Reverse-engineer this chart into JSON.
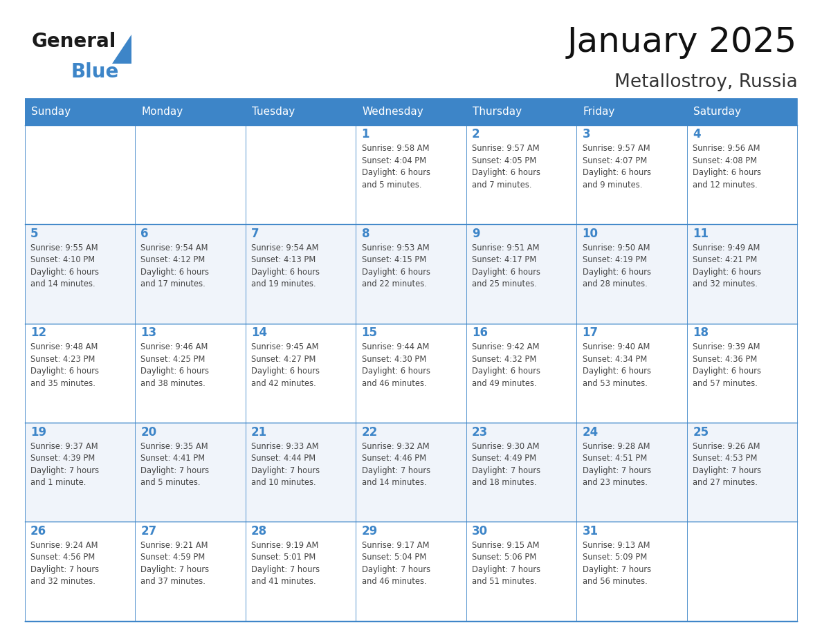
{
  "title": "January 2025",
  "subtitle": "Metallostroy, Russia",
  "days_of_week": [
    "Sunday",
    "Monday",
    "Tuesday",
    "Wednesday",
    "Thursday",
    "Friday",
    "Saturday"
  ],
  "header_bg": "#3d85c8",
  "header_text": "#ffffff",
  "cell_bg_even": "#ffffff",
  "cell_bg_odd": "#f0f4fa",
  "cell_border": "#3d85c8",
  "day_num_color": "#3d85c8",
  "text_color": "#444444",
  "calendar": [
    [
      null,
      null,
      null,
      {
        "day": 1,
        "sunrise": "9:58 AM",
        "sunset": "4:04 PM",
        "daylight": "6 hours\nand 5 minutes."
      },
      {
        "day": 2,
        "sunrise": "9:57 AM",
        "sunset": "4:05 PM",
        "daylight": "6 hours\nand 7 minutes."
      },
      {
        "day": 3,
        "sunrise": "9:57 AM",
        "sunset": "4:07 PM",
        "daylight": "6 hours\nand 9 minutes."
      },
      {
        "day": 4,
        "sunrise": "9:56 AM",
        "sunset": "4:08 PM",
        "daylight": "6 hours\nand 12 minutes."
      }
    ],
    [
      {
        "day": 5,
        "sunrise": "9:55 AM",
        "sunset": "4:10 PM",
        "daylight": "6 hours\nand 14 minutes."
      },
      {
        "day": 6,
        "sunrise": "9:54 AM",
        "sunset": "4:12 PM",
        "daylight": "6 hours\nand 17 minutes."
      },
      {
        "day": 7,
        "sunrise": "9:54 AM",
        "sunset": "4:13 PM",
        "daylight": "6 hours\nand 19 minutes."
      },
      {
        "day": 8,
        "sunrise": "9:53 AM",
        "sunset": "4:15 PM",
        "daylight": "6 hours\nand 22 minutes."
      },
      {
        "day": 9,
        "sunrise": "9:51 AM",
        "sunset": "4:17 PM",
        "daylight": "6 hours\nand 25 minutes."
      },
      {
        "day": 10,
        "sunrise": "9:50 AM",
        "sunset": "4:19 PM",
        "daylight": "6 hours\nand 28 minutes."
      },
      {
        "day": 11,
        "sunrise": "9:49 AM",
        "sunset": "4:21 PM",
        "daylight": "6 hours\nand 32 minutes."
      }
    ],
    [
      {
        "day": 12,
        "sunrise": "9:48 AM",
        "sunset": "4:23 PM",
        "daylight": "6 hours\nand 35 minutes."
      },
      {
        "day": 13,
        "sunrise": "9:46 AM",
        "sunset": "4:25 PM",
        "daylight": "6 hours\nand 38 minutes."
      },
      {
        "day": 14,
        "sunrise": "9:45 AM",
        "sunset": "4:27 PM",
        "daylight": "6 hours\nand 42 minutes."
      },
      {
        "day": 15,
        "sunrise": "9:44 AM",
        "sunset": "4:30 PM",
        "daylight": "6 hours\nand 46 minutes."
      },
      {
        "day": 16,
        "sunrise": "9:42 AM",
        "sunset": "4:32 PM",
        "daylight": "6 hours\nand 49 minutes."
      },
      {
        "day": 17,
        "sunrise": "9:40 AM",
        "sunset": "4:34 PM",
        "daylight": "6 hours\nand 53 minutes."
      },
      {
        "day": 18,
        "sunrise": "9:39 AM",
        "sunset": "4:36 PM",
        "daylight": "6 hours\nand 57 minutes."
      }
    ],
    [
      {
        "day": 19,
        "sunrise": "9:37 AM",
        "sunset": "4:39 PM",
        "daylight": "7 hours\nand 1 minute."
      },
      {
        "day": 20,
        "sunrise": "9:35 AM",
        "sunset": "4:41 PM",
        "daylight": "7 hours\nand 5 minutes."
      },
      {
        "day": 21,
        "sunrise": "9:33 AM",
        "sunset": "4:44 PM",
        "daylight": "7 hours\nand 10 minutes."
      },
      {
        "day": 22,
        "sunrise": "9:32 AM",
        "sunset": "4:46 PM",
        "daylight": "7 hours\nand 14 minutes."
      },
      {
        "day": 23,
        "sunrise": "9:30 AM",
        "sunset": "4:49 PM",
        "daylight": "7 hours\nand 18 minutes."
      },
      {
        "day": 24,
        "sunrise": "9:28 AM",
        "sunset": "4:51 PM",
        "daylight": "7 hours\nand 23 minutes."
      },
      {
        "day": 25,
        "sunrise": "9:26 AM",
        "sunset": "4:53 PM",
        "daylight": "7 hours\nand 27 minutes."
      }
    ],
    [
      {
        "day": 26,
        "sunrise": "9:24 AM",
        "sunset": "4:56 PM",
        "daylight": "7 hours\nand 32 minutes."
      },
      {
        "day": 27,
        "sunrise": "9:21 AM",
        "sunset": "4:59 PM",
        "daylight": "7 hours\nand 37 minutes."
      },
      {
        "day": 28,
        "sunrise": "9:19 AM",
        "sunset": "5:01 PM",
        "daylight": "7 hours\nand 41 minutes."
      },
      {
        "day": 29,
        "sunrise": "9:17 AM",
        "sunset": "5:04 PM",
        "daylight": "7 hours\nand 46 minutes."
      },
      {
        "day": 30,
        "sunrise": "9:15 AM",
        "sunset": "5:06 PM",
        "daylight": "7 hours\nand 51 minutes."
      },
      {
        "day": 31,
        "sunrise": "9:13 AM",
        "sunset": "5:09 PM",
        "daylight": "7 hours\nand 56 minutes."
      },
      null
    ]
  ]
}
